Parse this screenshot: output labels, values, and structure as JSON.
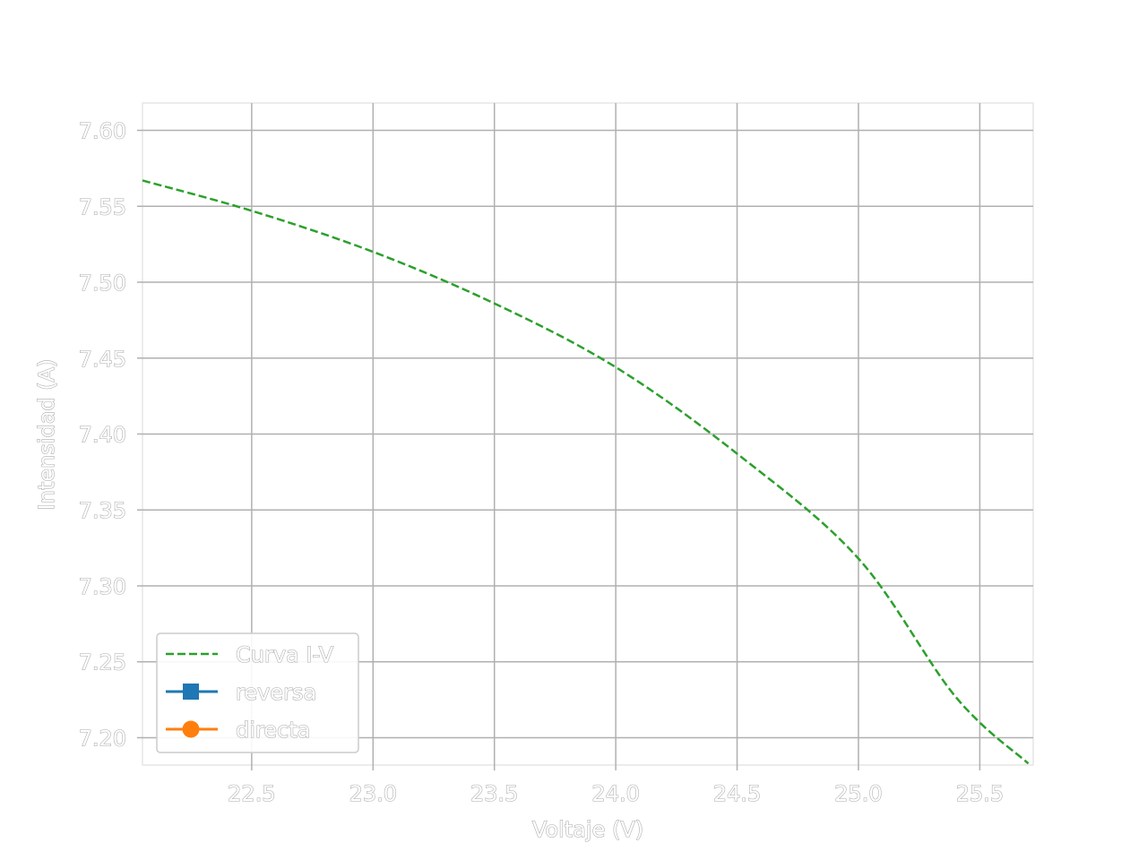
{
  "chart_data": {
    "type": "line",
    "title": "",
    "xlabel": "Voltaje (V)",
    "ylabel": "Intensidad (A)",
    "xlim": [
      22.05,
      25.72
    ],
    "ylim": [
      7.182,
      7.618
    ],
    "xticks": [
      "22.5",
      "23.0",
      "23.5",
      "24.0",
      "24.5",
      "25.0",
      "25.5"
    ],
    "yticks": [
      "7.20",
      "7.25",
      "7.30",
      "7.35",
      "7.40",
      "7.45",
      "7.50",
      "7.55",
      "7.60"
    ],
    "grid": true,
    "legend_position": "lower-left",
    "series": [
      {
        "name": "Curva I-V",
        "style": "dashed",
        "color": "#2ca02c",
        "x": [
          22.05,
          22.5,
          23.0,
          23.5,
          24.0,
          24.5,
          25.0,
          25.4,
          25.7
        ],
        "y": [
          7.567,
          7.547,
          7.52,
          7.486,
          7.444,
          7.387,
          7.318,
          7.227,
          7.183
        ]
      },
      {
        "name": "reversa",
        "style": "solid-square-marker",
        "color": "#1f77b4",
        "x": [],
        "y": []
      },
      {
        "name": "directa",
        "style": "solid-circle-marker",
        "color": "#ff7f0e",
        "x": [],
        "y": []
      }
    ]
  }
}
